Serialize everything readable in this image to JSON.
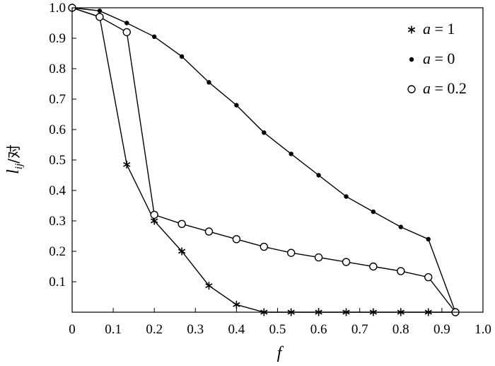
{
  "chart_data": {
    "type": "line",
    "title": "",
    "xlabel": "f",
    "ylabel_main": "l",
    "ylabel_sub": "ij",
    "ylabel_unit": "/对",
    "xlim": [
      0,
      1.0
    ],
    "ylim": [
      0,
      1.0
    ],
    "x_ticks": [
      0,
      0.1,
      0.2,
      0.3,
      0.4,
      0.5,
      0.6,
      0.7,
      0.8,
      0.9,
      1.0
    ],
    "x_tick_labels": [
      "0",
      "0.1",
      "0.2",
      "0.3",
      "0.4",
      "0.5",
      "0.6",
      "0.7",
      "0.8",
      "0.9",
      "1.0"
    ],
    "y_ticks": [
      0.1,
      0.2,
      0.3,
      0.4,
      0.5,
      0.6,
      0.7,
      0.8,
      0.9,
      1.0
    ],
    "y_tick_labels": [
      "0.1",
      "0.2",
      "0.3",
      "0.4",
      "0.5",
      "0.6",
      "0.7",
      "0.8",
      "0.9",
      "1.0"
    ],
    "grid": false,
    "legend_position": "top-right",
    "series": [
      {
        "name": "a=1",
        "legend_var": "a",
        "legend_val": "1",
        "marker": "asterisk",
        "x": [
          0.0,
          0.067,
          0.133,
          0.2,
          0.267,
          0.333,
          0.4,
          0.467,
          0.533,
          0.6,
          0.667,
          0.733,
          0.8,
          0.867,
          0.933
        ],
        "y": [
          1.0,
          0.97,
          0.485,
          0.3,
          0.2,
          0.087,
          0.025,
          0.0,
          0.0,
          0.0,
          0.0,
          0.0,
          0.0,
          0.0,
          0.0
        ]
      },
      {
        "name": "a=0",
        "legend_var": "a",
        "legend_val": "0",
        "marker": "dot",
        "x": [
          0.0,
          0.067,
          0.133,
          0.2,
          0.267,
          0.333,
          0.4,
          0.467,
          0.533,
          0.6,
          0.667,
          0.733,
          0.8,
          0.867,
          0.933
        ],
        "y": [
          1.0,
          0.99,
          0.95,
          0.905,
          0.84,
          0.755,
          0.68,
          0.59,
          0.52,
          0.45,
          0.38,
          0.33,
          0.28,
          0.24,
          0.0
        ]
      },
      {
        "name": "a=0.2",
        "legend_var": "a",
        "legend_val": "0.2",
        "marker": "circle",
        "x": [
          0.0,
          0.067,
          0.133,
          0.2,
          0.267,
          0.333,
          0.4,
          0.467,
          0.533,
          0.6,
          0.667,
          0.733,
          0.8,
          0.867,
          0.933
        ],
        "y": [
          1.0,
          0.97,
          0.92,
          0.32,
          0.29,
          0.265,
          0.24,
          0.215,
          0.195,
          0.18,
          0.165,
          0.15,
          0.135,
          0.115,
          0.0
        ]
      }
    ]
  }
}
